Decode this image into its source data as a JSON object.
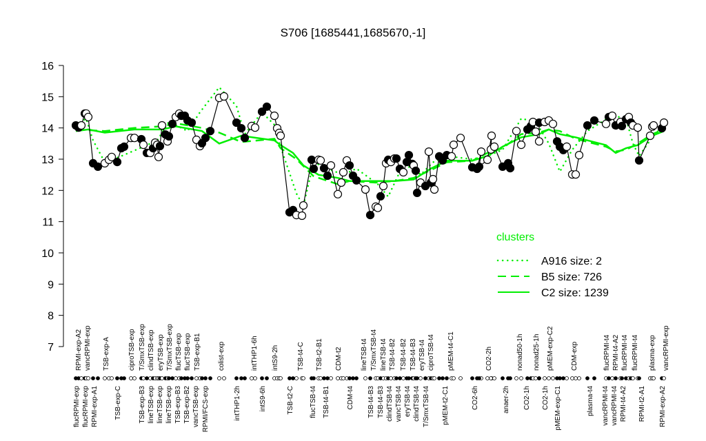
{
  "chart_data": {
    "type": "line",
    "title": "S706 [1685441,1685670,-1]",
    "xlabel": "",
    "ylabel": "",
    "ylim": [
      7,
      16
    ],
    "yticks": [
      7,
      8,
      9,
      10,
      11,
      12,
      13,
      14,
      15,
      16
    ],
    "grid": false,
    "legend": {
      "title": "clusters",
      "placement": "right",
      "entries": [
        {
          "label": "A916 size: 2",
          "style": "dotted"
        },
        {
          "label": "B5 size: 726",
          "style": "dashed"
        },
        {
          "label": "C2 size: 1239",
          "style": "solid"
        }
      ]
    },
    "colors": {
      "points": "#000000",
      "clusters": "#00ee00"
    },
    "points": {
      "values": [
        14.08,
        14.01,
        14.08,
        14.46,
        14.46,
        14.35,
        12.87,
        12.76,
        12.87,
        12.98,
        13.07,
        12.91,
        13.35,
        13.4,
        13.68,
        13.68,
        13.64,
        13.46,
        13.2,
        13.2,
        13.35,
        13.53,
        13.46,
        13.07,
        13.42,
        14.08,
        13.79,
        13.57,
        13.73,
        14.13,
        14.35,
        14.46,
        14.39,
        14.39,
        14.24,
        14.17,
        13.62,
        13.42,
        13.51,
        13.68,
        13.9,
        14.96,
        15.01,
        14.17,
        13.99,
        13.68,
        14.06,
        14.01,
        14.52,
        14.68,
        14.39,
        13.99,
        13.84,
        13.75,
        11.3,
        11.37,
        11.21,
        11.19,
        11.52,
        12.98,
        12.69,
        12.98,
        12.96,
        12.71,
        12.47,
        12.8,
        11.88,
        12.25,
        12.58,
        12.96,
        12.8,
        12.47,
        12.32,
        12.03,
        11.21,
        11.48,
        11.44,
        11.81,
        12.14,
        12.87,
        12.98,
        12.91,
        13.02,
        13.02,
        12.69,
        12.58,
        12.91,
        13.13,
        12.85,
        12.8,
        12.63,
        11.92,
        12.25,
        12.14,
        13.24,
        12.25,
        12.36,
        12.03,
        13.09,
        12.96,
        13.13,
        13.09,
        13.46,
        13.68,
        12.74,
        12.69,
        13.24,
        12.76,
        12.98,
        13.75,
        13.31,
        13.4,
        12.76,
        12.87,
        12.71,
        13.9,
        13.46,
        13.95,
        14.06,
        14.19,
        13.88,
        13.57,
        14.17,
        14.19,
        14.24,
        14.13,
        13.57,
        13.4,
        13.29,
        13.4,
        12.51,
        12.51,
        13.13,
        14.08,
        14.24,
        14.13,
        14.35,
        14.39,
        14.08,
        14.19,
        14.06,
        14.28,
        14.35,
        14.17,
        14.08,
        14.01,
        12.96,
        13.75,
        14.04,
        14.08,
        13.99,
        14.17
      ],
      "filled": [
        1,
        1,
        0,
        1,
        0,
        0,
        1,
        1,
        0,
        0,
        0,
        1,
        1,
        1,
        0,
        0,
        1,
        0,
        1,
        0,
        1,
        0,
        0,
        0,
        1,
        0,
        1,
        0,
        1,
        1,
        0,
        0,
        1,
        1,
        1,
        1,
        0,
        0,
        1,
        1,
        1,
        0,
        0,
        1,
        1,
        1,
        0,
        0,
        1,
        1,
        0,
        0,
        0,
        0,
        1,
        1,
        0,
        0,
        0,
        1,
        1,
        0,
        0,
        1,
        1,
        0,
        0,
        0,
        0,
        0,
        1,
        1,
        1,
        0,
        1,
        0,
        0,
        1,
        0,
        0,
        1,
        0,
        0,
        1,
        1,
        0,
        1,
        1,
        1,
        0,
        1,
        1,
        0,
        1,
        0,
        1,
        0,
        0,
        1,
        1,
        1,
        0,
        0,
        0,
        1,
        1,
        0,
        1,
        0,
        0,
        0,
        0,
        1,
        1,
        1,
        0,
        0,
        1,
        1,
        0,
        0,
        0,
        1,
        0,
        0,
        0,
        1,
        1,
        1,
        0,
        0,
        0,
        0,
        1,
        1,
        0,
        1,
        0,
        1,
        0,
        1,
        1,
        0,
        1,
        0,
        0,
        1,
        0,
        0,
        0,
        1,
        0
      ]
    },
    "series": [
      {
        "name": "A916 size: 2",
        "style": "dotted",
        "points": [
          [
            0,
            14.1
          ],
          [
            4,
            14.3
          ],
          [
            6,
            13.6
          ],
          [
            8,
            12.9
          ],
          [
            12,
            13.1
          ],
          [
            17,
            13.4
          ],
          [
            22,
            13.6
          ],
          [
            28,
            14.2
          ],
          [
            34,
            13.9
          ],
          [
            37,
            14.5
          ],
          [
            41,
            15.3
          ],
          [
            43,
            14.7
          ],
          [
            45,
            13.8
          ],
          [
            48,
            14.5
          ],
          [
            50,
            14.1
          ],
          [
            53,
            13.4
          ],
          [
            56,
            11.9
          ],
          [
            58,
            11.5
          ],
          [
            60,
            12.9
          ],
          [
            64,
            12.7
          ],
          [
            68,
            12.5
          ],
          [
            72,
            12.7
          ],
          [
            76,
            12.2
          ],
          [
            80,
            11.8
          ],
          [
            84,
            12.6
          ],
          [
            88,
            12.8
          ],
          [
            92,
            12.5
          ],
          [
            96,
            12.9
          ],
          [
            100,
            13.1
          ],
          [
            104,
            13.0
          ],
          [
            108,
            13.1
          ],
          [
            112,
            13.3
          ],
          [
            116,
            14.3
          ],
          [
            120,
            14.2
          ],
          [
            124,
            13.5
          ],
          [
            127,
            12.6
          ],
          [
            130,
            13.3
          ],
          [
            133,
            13.9
          ],
          [
            137,
            14.4
          ],
          [
            141,
            14.3
          ],
          [
            144,
            13.5
          ],
          [
            146,
            13.1
          ],
          [
            148,
            13.7
          ],
          [
            151,
            14.1
          ]
        ]
      },
      {
        "name": "B5 size: 726",
        "style": "dashed",
        "points": [
          [
            0,
            13.95
          ],
          [
            8,
            13.9
          ],
          [
            15,
            14.0
          ],
          [
            25,
            14.05
          ],
          [
            30,
            14.15
          ],
          [
            38,
            14.0
          ],
          [
            41,
            13.85
          ],
          [
            44,
            13.55
          ],
          [
            50,
            13.65
          ],
          [
            53,
            13.35
          ],
          [
            56,
            13.0
          ],
          [
            60,
            12.45
          ],
          [
            66,
            12.2
          ],
          [
            70,
            12.3
          ],
          [
            75,
            12.25
          ],
          [
            82,
            12.3
          ],
          [
            89,
            12.4
          ],
          [
            95,
            12.65
          ],
          [
            100,
            12.9
          ],
          [
            104,
            12.95
          ],
          [
            108,
            13.2
          ],
          [
            112,
            13.35
          ],
          [
            116,
            13.8
          ],
          [
            121,
            13.85
          ],
          [
            124,
            13.95
          ],
          [
            127,
            13.9
          ],
          [
            131,
            13.65
          ],
          [
            135,
            13.4
          ],
          [
            138,
            13.25
          ],
          [
            141,
            13.3
          ],
          [
            145,
            13.5
          ],
          [
            148,
            13.8
          ],
          [
            151,
            13.95
          ]
        ]
      },
      {
        "name": "C2 size: 1239",
        "style": "solid",
        "points": [
          [
            0,
            13.9
          ],
          [
            5,
            13.95
          ],
          [
            8,
            13.85
          ],
          [
            15,
            13.95
          ],
          [
            25,
            13.95
          ],
          [
            30,
            14.05
          ],
          [
            38,
            13.9
          ],
          [
            41,
            13.5
          ],
          [
            44,
            13.75
          ],
          [
            50,
            13.6
          ],
          [
            53,
            13.45
          ],
          [
            55,
            13.2
          ],
          [
            58,
            12.8
          ],
          [
            61,
            12.5
          ],
          [
            66,
            12.4
          ],
          [
            70,
            12.3
          ],
          [
            75,
            12.3
          ],
          [
            82,
            12.3
          ],
          [
            89,
            12.35
          ],
          [
            95,
            12.7
          ],
          [
            100,
            12.95
          ],
          [
            104,
            12.95
          ],
          [
            108,
            13.1
          ],
          [
            112,
            13.4
          ],
          [
            116,
            13.7
          ],
          [
            121,
            13.8
          ],
          [
            124,
            13.95
          ],
          [
            127,
            13.8
          ],
          [
            131,
            13.7
          ],
          [
            135,
            13.45
          ],
          [
            138,
            13.2
          ],
          [
            141,
            13.35
          ],
          [
            145,
            13.45
          ],
          [
            148,
            13.75
          ],
          [
            151,
            13.9
          ]
        ]
      }
    ],
    "x_labels_top": [
      "RPMI-exp-A2",
      "vancRPMI-exp",
      "TSB-exp-A",
      "ciproTSB-exp",
      "T/SmxTSB-exp",
      "clindTSB-exp",
      "eryTSB-exp",
      "T/SmxTSB-exp",
      "flucTSB-exp",
      "flucTSB-exp",
      "TSB-exp-B1",
      "colist-exp",
      "intTHP1-6h",
      "intS9-2h",
      "TSB-t4-C",
      "TSB-t2-B1",
      "CDM-t2",
      "lineTSB-t4",
      "T/SmxTSB-t4",
      "lineTSB-t4",
      "TSB-t4-B2",
      "TSB-t4-B2",
      "TSB-t4-B3",
      "eryTSB-t4",
      "ciproTSB-t4",
      "pMEM-t4-C1",
      "CO2-2h",
      "nonad50-1h",
      "nonad25-1h",
      "pMEM-exp-C2",
      "CDM-exp",
      "flucRPMI-t4",
      "RPMI-t4-A2",
      "flucRPMI-t4",
      "flucRPMI-t4",
      "plasma-exp",
      "vancRPMI-exp"
    ],
    "x_labels_bottom": [
      "flucRPMI-exp",
      "flucRPMI-exp",
      "RPMI-exp-A1",
      "TSB-exp-C",
      "TSB-exp-B3",
      "lineTSB-exp",
      "lineTSB-exp",
      "lineTSB-exp",
      "TSB-exp-B3",
      "TSB-exp-B2",
      "vancTSB-exp",
      "RPMI/FCS-exp",
      "intTHP1-2h",
      "intS9-6h",
      "TSB-t2-C",
      "flucTSB-t4",
      "TSB-t4-B1",
      "CDM-t4",
      "TSB-t4-B3",
      "TSB-t4-B3",
      "clindTSB-t4",
      "vancTSB-t4",
      "eryTSB-t4",
      "clindTSB-t4",
      "T/SmxTSB-t4",
      "pMEM-t2-C1",
      "CO2-6h",
      "anaer-2h",
      "CO2-1h",
      "CO2-1h",
      "pMEM-exp-C1",
      "plasma-t4",
      "vancRPMI-t4",
      "vancRPMI-t4",
      "RPMI-t4-A2",
      "RPMI-t2-A1",
      "RPMI-exp-A2"
    ]
  }
}
